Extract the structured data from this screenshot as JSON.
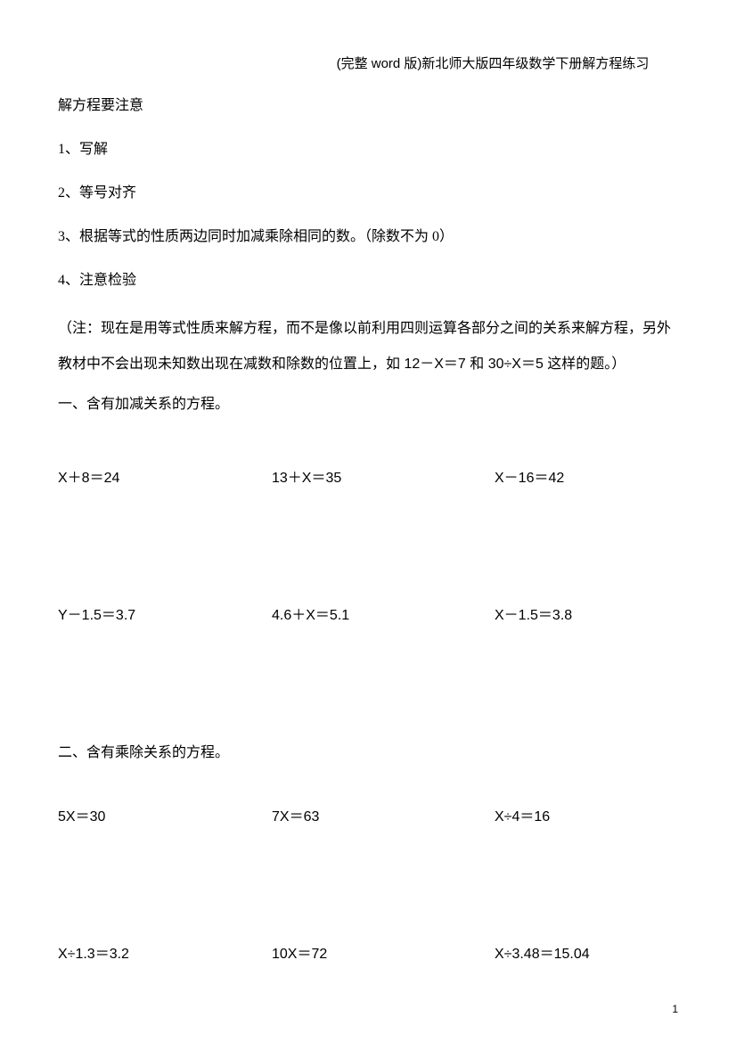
{
  "header": {
    "title": "(完整 word 版)新北师大版四年级数学下册解方程练习"
  },
  "intro": {
    "heading": "解方程要注意",
    "items": [
      "1、写解",
      "2、等号对齐",
      "3、根据等式的性质两边同时加减乘除相同的数。（除数不为 0）",
      "4、注意检验"
    ],
    "note": "（注：现在是用等式性质来解方程，而不是像以前利用四则运算各部分之间的关系来解方程，另外教材中不会出现未知数出现在减数和除数的位置上，如 12－X＝7 和 30÷X＝5 这样的题。）"
  },
  "section1": {
    "title": "一、含有加减关系的方程。",
    "rows": [
      {
        "eq1": "X＋8＝24",
        "eq2": "13＋X＝35",
        "eq3": "X－16＝42"
      },
      {
        "eq1": "Y－1.5＝3.7",
        "eq2": "4.6＋X＝5.1",
        "eq3": "X－1.5＝3.8"
      }
    ]
  },
  "section2": {
    "title": "二、含有乘除关系的方程。",
    "rows": [
      {
        "eq1": "5X＝30",
        "eq2": "7X＝63",
        "eq3": "X÷4＝16"
      },
      {
        "eq1": "X÷1.3＝3.2",
        "eq2": "10X＝72",
        "eq3": "X÷3.48＝15.04"
      }
    ]
  },
  "pageNumber": "1"
}
